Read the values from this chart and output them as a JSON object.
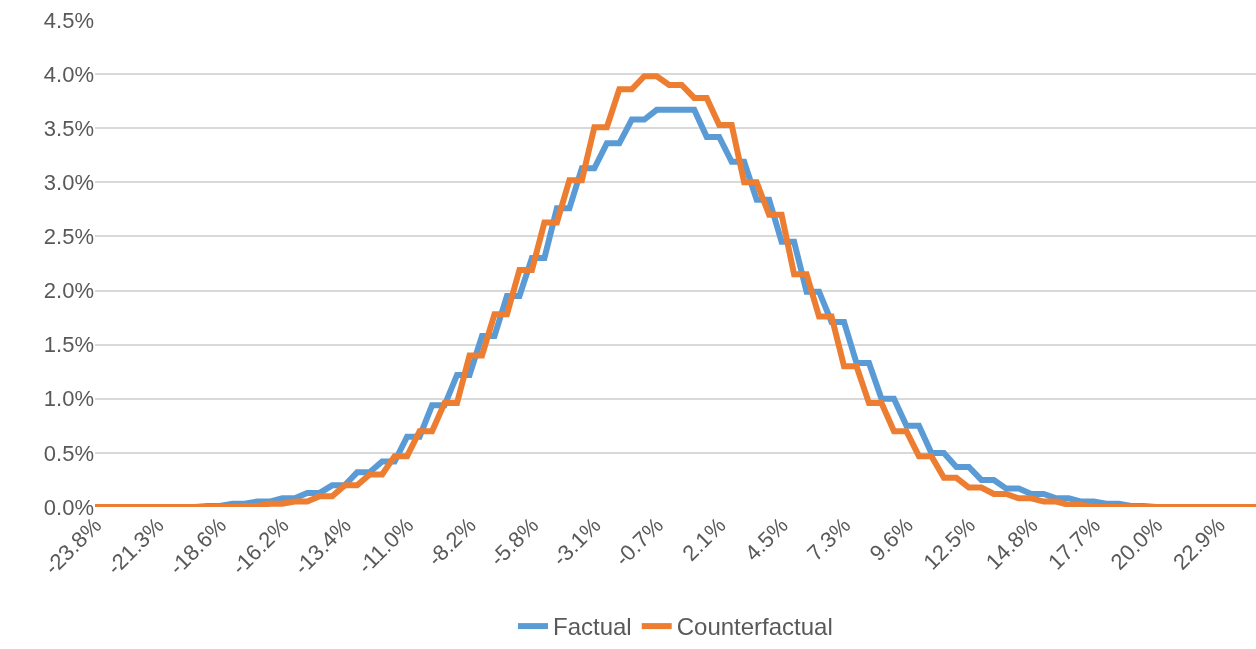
{
  "chart_data": {
    "type": "line",
    "categories": [
      "-23.8%",
      null,
      null,
      null,
      null,
      "-21.3%",
      null,
      null,
      null,
      null,
      "-18.6%",
      null,
      null,
      null,
      null,
      "-16.2%",
      null,
      null,
      null,
      null,
      "-13.4%",
      null,
      null,
      null,
      null,
      "-11.0%",
      null,
      null,
      null,
      null,
      "-8.2%",
      null,
      null,
      null,
      null,
      "-5.8%",
      null,
      null,
      null,
      null,
      "-3.1%",
      null,
      null,
      null,
      null,
      "-0.7%",
      null,
      null,
      null,
      null,
      "2.1%",
      null,
      null,
      null,
      null,
      "4.5%",
      null,
      null,
      null,
      null,
      "7.3%",
      null,
      null,
      null,
      null,
      "9.6%",
      null,
      null,
      null,
      null,
      "12.5%",
      null,
      null,
      null,
      null,
      "14.8%",
      null,
      null,
      null,
      null,
      "17.7%",
      null,
      null,
      null,
      null,
      "20.0%",
      null,
      null,
      null,
      null,
      "22.9%",
      null,
      null,
      null
    ],
    "series": [
      {
        "name": "Factual",
        "color": "#5b9bd5",
        "values": [
          null,
          null,
          null,
          null,
          null,
          null,
          null,
          0,
          0,
          0.01,
          0.01,
          0.03,
          0.03,
          0.05,
          0.05,
          0.08,
          0.08,
          0.13,
          0.13,
          0.2,
          0.2,
          0.32,
          0.32,
          0.42,
          0.42,
          0.65,
          0.65,
          0.94,
          0.94,
          1.22,
          1.22,
          1.58,
          1.58,
          1.95,
          1.95,
          2.3,
          2.3,
          2.76,
          2.76,
          3.13,
          3.13,
          3.36,
          3.36,
          3.58,
          3.58,
          3.67,
          3.67,
          3.67,
          3.67,
          3.42,
          3.42,
          3.19,
          3.19,
          2.84,
          2.84,
          2.45,
          2.45,
          1.99,
          1.99,
          1.71,
          1.71,
          1.33,
          1.33,
          1.0,
          1.0,
          0.75,
          0.75,
          0.5,
          0.5,
          0.37,
          0.37,
          0.25,
          0.25,
          0.17,
          0.17,
          0.12,
          0.12,
          0.08,
          0.08,
          0.05,
          0.05,
          0.03,
          0.03,
          0.01,
          0.01,
          0,
          0,
          null,
          null,
          null,
          null,
          null,
          null,
          null
        ]
      },
      {
        "name": "Counterfactual",
        "color": "#ed7d31",
        "values": [
          0,
          0,
          0,
          0,
          0,
          0,
          0,
          0,
          0,
          0,
          0,
          0,
          0.01,
          0.01,
          0.03,
          0.03,
          0.05,
          0.05,
          0.1,
          0.1,
          0.2,
          0.2,
          0.3,
          0.3,
          0.47,
          0.47,
          0.7,
          0.7,
          0.96,
          0.96,
          1.4,
          1.4,
          1.78,
          1.78,
          2.19,
          2.19,
          2.63,
          2.63,
          3.02,
          3.02,
          3.51,
          3.51,
          3.86,
          3.86,
          3.98,
          3.98,
          3.9,
          3.9,
          3.78,
          3.78,
          3.53,
          3.53,
          3.0,
          3.0,
          2.7,
          2.7,
          2.15,
          2.15,
          1.76,
          1.76,
          1.3,
          1.3,
          0.96,
          0.96,
          0.7,
          0.7,
          0.47,
          0.47,
          0.27,
          0.27,
          0.18,
          0.18,
          0.12,
          0.12,
          0.08,
          0.08,
          0.05,
          0.05,
          0.02,
          0.02,
          0,
          0,
          0,
          0,
          0,
          0,
          0,
          0,
          0,
          0,
          0,
          0,
          0,
          0
        ]
      }
    ],
    "ylim": [
      0,
      4.5
    ],
    "yticks": [
      {
        "value": 0,
        "label": "0.0%"
      },
      {
        "value": 0.5,
        "label": "0.5%"
      },
      {
        "value": 1,
        "label": "1.0%"
      },
      {
        "value": 1.5,
        "label": "1.5%"
      },
      {
        "value": 2,
        "label": "2.0%"
      },
      {
        "value": 2.5,
        "label": "2.5%"
      },
      {
        "value": 3,
        "label": "3.0%"
      },
      {
        "value": 3.5,
        "label": "3.5%"
      },
      {
        "value": 4,
        "label": "4.0%"
      },
      {
        "value": 4.5,
        "label": "4.5%"
      }
    ],
    "grid": "y",
    "legend": "bottom",
    "marker": "none",
    "line_style": "solid"
  }
}
